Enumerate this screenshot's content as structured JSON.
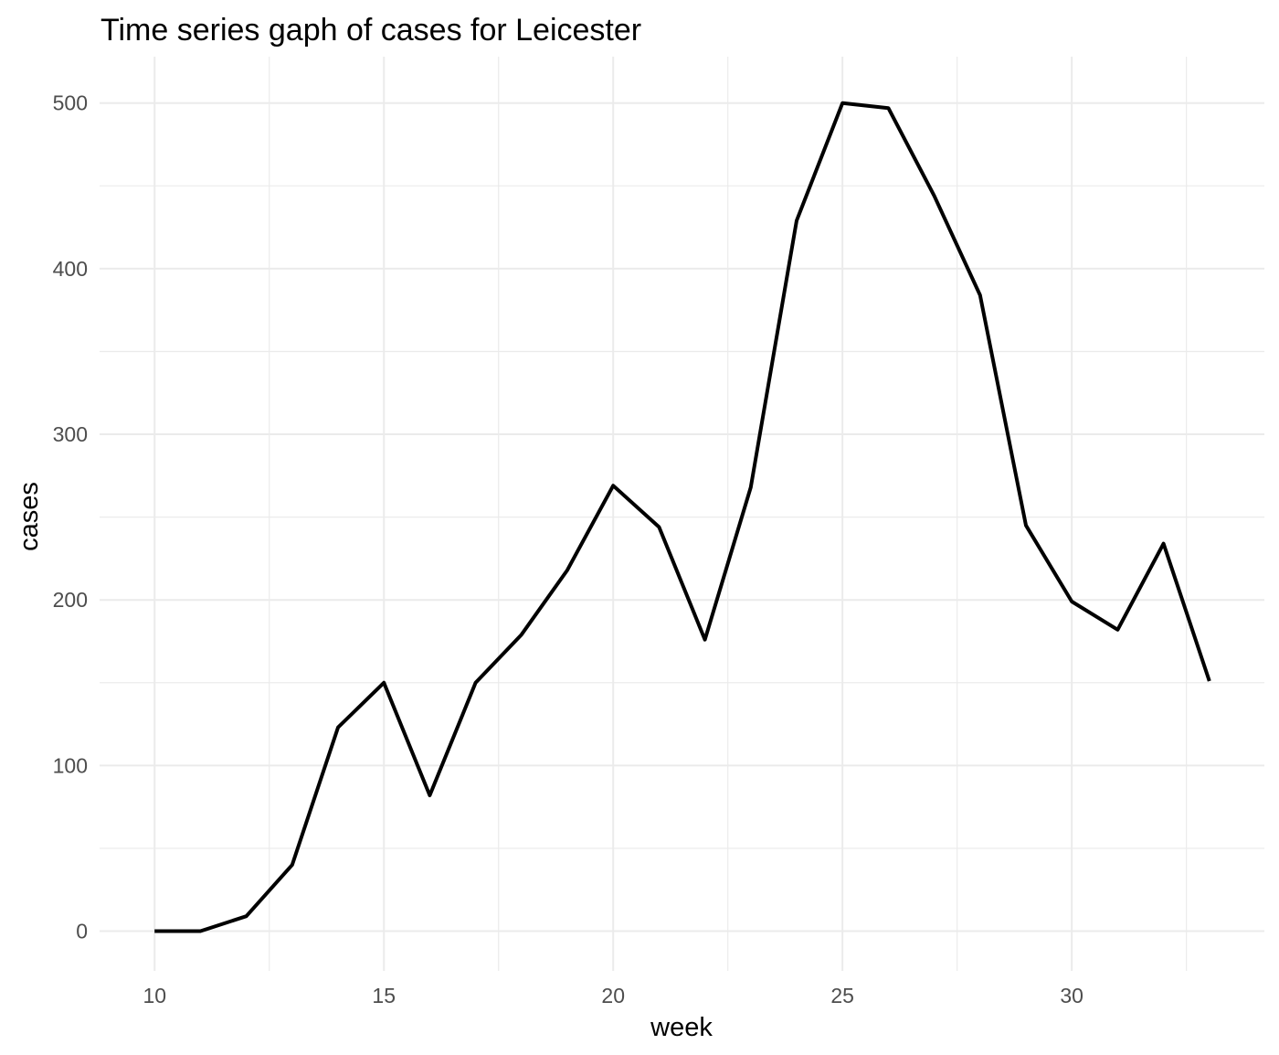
{
  "chart_data": {
    "type": "line",
    "title": "Time series gaph of cases for Leicester",
    "xlabel": "week",
    "ylabel": "cases",
    "xlim": [
      8.8,
      34.2
    ],
    "ylim": [
      -24,
      528
    ],
    "x_ticks": [
      10,
      15,
      20,
      25,
      30
    ],
    "y_ticks": [
      0,
      100,
      200,
      300,
      400,
      500
    ],
    "x_minor": [
      12.5,
      17.5,
      22.5,
      27.5,
      32.5
    ],
    "y_minor": [
      50,
      150,
      250,
      350,
      450
    ],
    "grid": true,
    "legend": "none",
    "line_color": "#000000",
    "series": [
      {
        "x": [
          10,
          11,
          12,
          13,
          14,
          15,
          16,
          17,
          18,
          19,
          20,
          21,
          22,
          23,
          24,
          25,
          26,
          27,
          28,
          29,
          30,
          31,
          32,
          33
        ],
        "values": [
          0,
          0,
          9,
          40,
          123,
          150,
          82,
          150,
          179,
          218,
          269,
          244,
          176,
          268,
          429,
          500,
          497,
          444,
          384,
          245,
          199,
          182,
          234,
          151
        ]
      }
    ]
  }
}
